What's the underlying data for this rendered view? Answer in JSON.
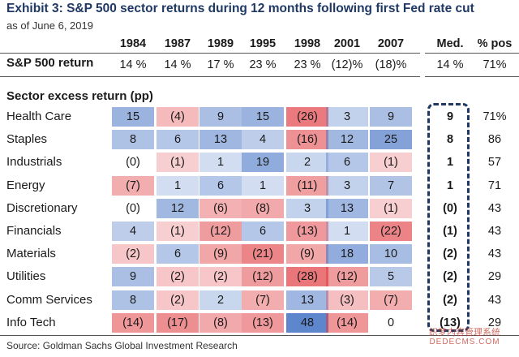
{
  "title": "Exhibit 3: S&P 500 sector returns during 12 months following first Fed rate cut",
  "subtitle": "as of June 6, 2019",
  "source": "Source:  Goldman Sachs Global Investment Research",
  "watermark": {
    "line1": "织梦内容管理系统",
    "line2": "DEDECMS.COM"
  },
  "columns": {
    "years": [
      "1984",
      "1987",
      "1989",
      "1995",
      "1998",
      "2001",
      "2007"
    ],
    "median": "Med.",
    "pct_pos": "% pos"
  },
  "sp500": {
    "label": "S&P 500 return",
    "values": [
      "14 %",
      "14 %",
      "17 %",
      "23 %",
      "23 %",
      "(12)%",
      "(18)%"
    ],
    "median": "14 %",
    "pct_pos": "71%"
  },
  "section_title": "Sector excess return (pp)",
  "colors": {
    "positive": "#4472c4",
    "negative": "#e0393e",
    "box": "#1f3864",
    "title": "#1f3864"
  },
  "chart_data": {
    "type": "heatmap",
    "title": "Exhibit 3: S&P 500 sector returns during 12 months following first Fed rate cut",
    "x": [
      "1984",
      "1987",
      "1989",
      "1995",
      "1998",
      "2001",
      "2007"
    ],
    "rows": [
      {
        "sector": "Health Care",
        "values": [
          15,
          -4,
          9,
          15,
          -26,
          3,
          9
        ],
        "labels": [
          "15",
          "(4)",
          "9",
          "15",
          "(26)",
          "3",
          "9"
        ],
        "median": "9",
        "pct_pos": "71%"
      },
      {
        "sector": "Staples",
        "values": [
          8,
          6,
          13,
          4,
          -16,
          12,
          25
        ],
        "labels": [
          "8",
          "6",
          "13",
          "4",
          "(16)",
          "12",
          "25"
        ],
        "median": "8",
        "pct_pos": "86"
      },
      {
        "sector": "Industrials",
        "values": [
          0,
          -1,
          1,
          19,
          2,
          6,
          -1
        ],
        "labels": [
          "(0)",
          "(1)",
          "1",
          "19",
          "2",
          "6",
          "(1)"
        ],
        "median": "1",
        "pct_pos": "57"
      },
      {
        "sector": "Energy",
        "values": [
          -7,
          1,
          6,
          1,
          -11,
          3,
          7
        ],
        "labels": [
          "(7)",
          "1",
          "6",
          "1",
          "(11)",
          "3",
          "7"
        ],
        "median": "1",
        "pct_pos": "71"
      },
      {
        "sector": "Discretionary",
        "values": [
          0,
          12,
          -6,
          -8,
          3,
          13,
          -1
        ],
        "labels": [
          "(0)",
          "12",
          "(6)",
          "(8)",
          "3",
          "13",
          "(1)"
        ],
        "median": "(0)",
        "pct_pos": "43"
      },
      {
        "sector": "Financials",
        "values": [
          4,
          -1,
          -12,
          6,
          -13,
          1,
          -22
        ],
        "labels": [
          "4",
          "(1)",
          "(12)",
          "6",
          "(13)",
          "1",
          "(22)"
        ],
        "median": "(1)",
        "pct_pos": "43"
      },
      {
        "sector": "Materials",
        "values": [
          -2,
          6,
          -9,
          -21,
          -9,
          18,
          10
        ],
        "labels": [
          "(2)",
          "6",
          "(9)",
          "(21)",
          "(9)",
          "18",
          "10"
        ],
        "median": "(2)",
        "pct_pos": "43"
      },
      {
        "sector": "Utilities",
        "values": [
          9,
          -2,
          -2,
          -12,
          -28,
          -12,
          5
        ],
        "labels": [
          "9",
          "(2)",
          "(2)",
          "(12)",
          "(28)",
          "(12)",
          "5"
        ],
        "median": "(2)",
        "pct_pos": "29"
      },
      {
        "sector": "Comm Services",
        "values": [
          8,
          -2,
          2,
          -7,
          13,
          -3,
          -7
        ],
        "labels": [
          "8",
          "(2)",
          "2",
          "(7)",
          "13",
          "(3)",
          "(7)"
        ],
        "median": "(2)",
        "pct_pos": "43"
      },
      {
        "sector": "Info Tech",
        "values": [
          -14,
          -17,
          -8,
          -13,
          48,
          -14,
          0
        ],
        "labels": [
          "(14)",
          "(17)",
          "(8)",
          "(13)",
          "48",
          "(14)",
          "0"
        ],
        "median": "(13)",
        "pct_pos": "29"
      }
    ]
  }
}
